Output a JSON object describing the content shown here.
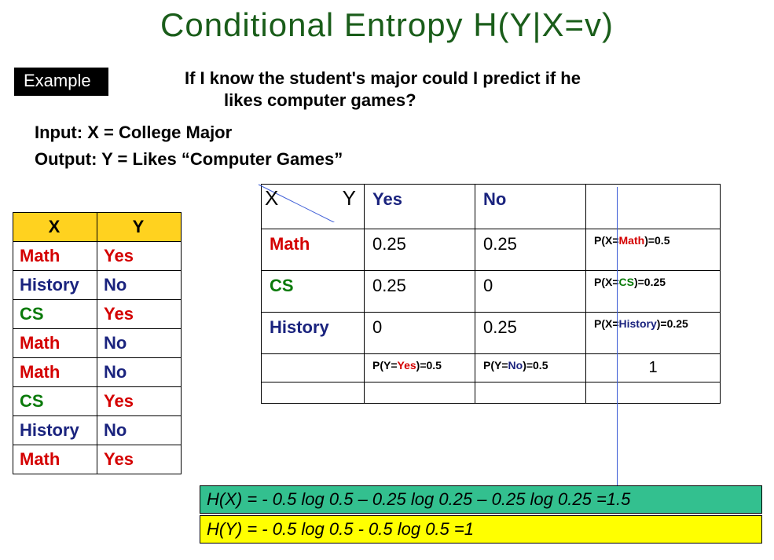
{
  "title": "Conditional Entropy H(Y|X=v)",
  "example_label": "Example",
  "question_l1": "If I know the student's major could I predict if he",
  "question_l2": "likes computer games?",
  "input_line": "Input:  X = College Major",
  "output_line": "Output:  Y = Likes “Computer Games”",
  "colors": {
    "math": "#d40000",
    "cs": "#0a7a0a",
    "history": "#1a237e",
    "yes": "#d40000",
    "no": "#1a237e",
    "title": "#1a5d1a",
    "header_bg": "#ffd21f",
    "hx_bg": "#33c08f",
    "hy_bg": "#ffff00"
  },
  "data_table": {
    "headers": [
      "X",
      "Y"
    ],
    "rows": [
      {
        "x": "Math",
        "xc": "math",
        "y": "Yes",
        "yc": "yes"
      },
      {
        "x": "History",
        "xc": "history",
        "y": "No",
        "yc": "no"
      },
      {
        "x": "CS",
        "xc": "cs",
        "y": "Yes",
        "yc": "yes"
      },
      {
        "x": "Math",
        "xc": "math",
        "y": "No",
        "yc": "no"
      },
      {
        "x": "Math",
        "xc": "math",
        "y": "No",
        "yc": "no"
      },
      {
        "x": "CS",
        "xc": "cs",
        "y": "Yes",
        "yc": "yes"
      },
      {
        "x": "History",
        "xc": "history",
        "y": "No",
        "yc": "no"
      },
      {
        "x": "Math",
        "xc": "math",
        "y": "Yes",
        "yc": "yes"
      }
    ]
  },
  "joint": {
    "xy_x": "X",
    "xy_y": "Y",
    "col_yes": "Yes",
    "col_no": "No",
    "rows": [
      {
        "label": "Math",
        "lc": "math",
        "yes": "0.25",
        "no": "0.25",
        "marg_pre": "P(X=",
        "marg_mid": "Math",
        "marg_mc": "math",
        "marg_post": ")=0.5"
      },
      {
        "label": "CS",
        "lc": "cs",
        "yes": "0.25",
        "no": "0",
        "marg_pre": "P(X=",
        "marg_mid": "CS",
        "marg_mc": "cs",
        "marg_post": ")=0.25"
      },
      {
        "label": "History",
        "lc": "history",
        "yes": "0",
        "no": "0.25",
        "marg_pre": "P(X=",
        "marg_mid": "History",
        "marg_mc": "history",
        "marg_post": ")=0.25"
      }
    ],
    "col_marg_yes_pre": "P(Y=",
    "col_marg_yes_mid": "Yes",
    "col_marg_yes_post": ")=0.5",
    "col_marg_no_pre": "P(Y=",
    "col_marg_no_mid": "No",
    "col_marg_no_post": ")=0.5",
    "total": "1"
  },
  "hx": "H(X) = - 0.5 log 0.5 – 0.25 log 0.25 – 0.25 log 0.25 =1.5",
  "hy": "H(Y) = - 0.5 log 0.5 - 0.5 log 0.5 =1"
}
